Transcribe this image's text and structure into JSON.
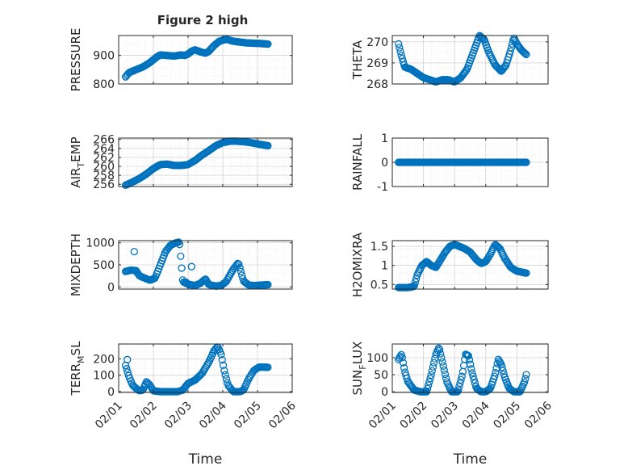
{
  "figure": {
    "title": "Figure 2 high",
    "colors": {
      "marker": "#0072BD",
      "axes": "#262626",
      "grid": "#c8c8c8"
    },
    "marker": "open-circle"
  },
  "chart_data": [
    {
      "type": "scatter",
      "ylabel": "PRESSURE",
      "title": "Figure 2 high",
      "ylim": [
        800,
        970
      ],
      "yticks": [
        800,
        900
      ],
      "yticklabels": [
        "800",
        "900"
      ],
      "xlim": [
        0,
        5
      ],
      "xticks": [
        0,
        1,
        2,
        3,
        4,
        5
      ],
      "xticklabels": [
        "02/01",
        "02/02",
        "02/03",
        "02/04",
        "02/05",
        "02/06"
      ],
      "show_xticklabels": false,
      "grid": true,
      "minor_grid": true,
      "profile": [
        [
          0.2,
          825
        ],
        [
          0.3,
          840
        ],
        [
          0.5,
          850
        ],
        [
          0.7,
          860
        ],
        [
          0.9,
          875
        ],
        [
          1.1,
          895
        ],
        [
          1.2,
          902
        ],
        [
          1.4,
          900
        ],
        [
          1.6,
          898
        ],
        [
          1.8,
          902
        ],
        [
          1.9,
          900
        ],
        [
          2.0,
          905
        ],
        [
          2.1,
          915
        ],
        [
          2.2,
          920
        ],
        [
          2.35,
          913
        ],
        [
          2.5,
          908
        ],
        [
          2.6,
          915
        ],
        [
          2.75,
          935
        ],
        [
          2.9,
          950
        ],
        [
          3.1,
          957
        ],
        [
          3.3,
          950
        ],
        [
          3.5,
          947
        ],
        [
          3.7,
          944
        ],
        [
          3.9,
          943
        ],
        [
          4.1,
          942
        ],
        [
          4.2,
          941
        ],
        [
          4.3,
          940
        ]
      ]
    },
    {
      "type": "scatter",
      "ylabel": "THETA",
      "ylim": [
        268,
        270.3
      ],
      "yticks": [
        268,
        269,
        270
      ],
      "yticklabels": [
        "268",
        "269",
        "270"
      ],
      "xlim": [
        0,
        5
      ],
      "xticks": [
        0,
        1,
        2,
        3,
        4,
        5
      ],
      "xticklabels": [
        "02/01",
        "02/02",
        "02/03",
        "02/04",
        "02/05",
        "02/06"
      ],
      "show_xticklabels": false,
      "grid": true,
      "minor_grid": true,
      "profile": [
        [
          0.2,
          269.9
        ],
        [
          0.3,
          269.3
        ],
        [
          0.4,
          268.8
        ],
        [
          0.6,
          268.7
        ],
        [
          0.8,
          268.5
        ],
        [
          1.0,
          268.3
        ],
        [
          1.2,
          268.2
        ],
        [
          1.4,
          268.1
        ],
        [
          1.6,
          268.2
        ],
        [
          1.8,
          268.2
        ],
        [
          2.0,
          268.1
        ],
        [
          2.2,
          268.3
        ],
        [
          2.4,
          268.7
        ],
        [
          2.55,
          269.3
        ],
        [
          2.7,
          269.9
        ],
        [
          2.8,
          270.3
        ],
        [
          2.95,
          270.1
        ],
        [
          3.1,
          269.5
        ],
        [
          3.3,
          268.9
        ],
        [
          3.5,
          268.6
        ],
        [
          3.65,
          268.9
        ],
        [
          3.8,
          269.6
        ],
        [
          3.9,
          270.2
        ],
        [
          4.0,
          269.9
        ],
        [
          4.15,
          269.6
        ],
        [
          4.3,
          269.4
        ]
      ]
    },
    {
      "type": "scatter",
      "ylabel": "AIR_TEMP",
      "ylim": [
        255.5,
        266.3
      ],
      "yticks": [
        256,
        258,
        260,
        262,
        264,
        266
      ],
      "yticklabels": [
        "256",
        "258",
        "260",
        "262",
        "264",
        "266"
      ],
      "xlim": [
        0,
        5
      ],
      "xticks": [
        0,
        1,
        2,
        3,
        4,
        5
      ],
      "xticklabels": [
        "02/01",
        "02/02",
        "02/03",
        "02/04",
        "02/05",
        "02/06"
      ],
      "show_xticklabels": false,
      "grid": true,
      "minor_grid": true,
      "profile": [
        [
          0.2,
          255.8
        ],
        [
          0.4,
          256.5
        ],
        [
          0.6,
          257.3
        ],
        [
          0.8,
          258.3
        ],
        [
          1.0,
          259.5
        ],
        [
          1.2,
          260.4
        ],
        [
          1.4,
          260.5
        ],
        [
          1.6,
          260.2
        ],
        [
          1.8,
          260.2
        ],
        [
          2.0,
          260.4
        ],
        [
          2.2,
          261.3
        ],
        [
          2.4,
          262.5
        ],
        [
          2.6,
          263.5
        ],
        [
          2.8,
          264.6
        ],
        [
          3.0,
          265.3
        ],
        [
          3.2,
          265.6
        ],
        [
          3.4,
          265.6
        ],
        [
          3.6,
          265.5
        ],
        [
          3.8,
          265.3
        ],
        [
          4.0,
          265.0
        ],
        [
          4.3,
          264.6
        ]
      ]
    },
    {
      "type": "scatter",
      "ylabel": "RAINFALL",
      "ylim": [
        -1,
        1
      ],
      "yticks": [
        -1,
        0,
        1
      ],
      "yticklabels": [
        "-1",
        "0",
        "1"
      ],
      "xlim": [
        0,
        5
      ],
      "xticks": [
        0,
        1,
        2,
        3,
        4,
        5
      ],
      "xticklabels": [
        "02/01",
        "02/02",
        "02/03",
        "02/04",
        "02/05",
        "02/06"
      ],
      "show_xticklabels": false,
      "grid": true,
      "minor_grid": true,
      "profile": [
        [
          0.2,
          0
        ],
        [
          4.3,
          0
        ]
      ]
    },
    {
      "type": "scatter",
      "ylabel": "MIXDEPTH",
      "ylim": [
        -50,
        1050
      ],
      "yticks": [
        0,
        500,
        1000
      ],
      "yticklabels": [
        "0",
        "500",
        "1000"
      ],
      "xlim": [
        0,
        5
      ],
      "xticks": [
        0,
        1,
        2,
        3,
        4,
        5
      ],
      "xticklabels": [
        "02/01",
        "02/02",
        "02/03",
        "02/04",
        "02/05",
        "02/06"
      ],
      "show_xticklabels": false,
      "grid": true,
      "minor_grid": true,
      "profile": [
        [
          0.2,
          350
        ],
        [
          0.35,
          380
        ],
        [
          0.5,
          370
        ],
        [
          0.6,
          250
        ],
        [
          0.75,
          200
        ],
        [
          0.9,
          150
        ],
        [
          1.05,
          200
        ],
        [
          1.2,
          500
        ],
        [
          1.35,
          800
        ],
        [
          1.5,
          950
        ],
        [
          1.65,
          1000
        ],
        [
          1.75,
          1020
        ],
        [
          1.85,
          120
        ],
        [
          2.0,
          60
        ],
        [
          2.2,
          30
        ],
        [
          2.35,
          80
        ],
        [
          2.5,
          180
        ],
        [
          2.6,
          50
        ],
        [
          2.8,
          20
        ],
        [
          2.95,
          30
        ],
        [
          3.1,
          120
        ],
        [
          3.3,
          400
        ],
        [
          3.45,
          550
        ],
        [
          3.6,
          130
        ],
        [
          3.75,
          40
        ],
        [
          3.9,
          30
        ],
        [
          4.1,
          40
        ],
        [
          4.3,
          50
        ]
      ],
      "outliers": [
        [
          0.45,
          800
        ],
        [
          2.1,
          460
        ],
        [
          1.95,
          100
        ]
      ]
    },
    {
      "type": "scatter",
      "ylabel": "H2OMIXRA",
      "ylim": [
        0.38,
        1.65
      ],
      "yticks": [
        0.5,
        1,
        1.5
      ],
      "yticklabels": [
        "0.5",
        "1",
        "1.5"
      ],
      "xlim": [
        0,
        5
      ],
      "xticks": [
        0,
        1,
        2,
        3,
        4,
        5
      ],
      "xticklabels": [
        "02/01",
        "02/02",
        "02/03",
        "02/04",
        "02/05",
        "02/06"
      ],
      "show_xticklabels": false,
      "grid": true,
      "minor_grid": true,
      "profile": [
        [
          0.2,
          0.42
        ],
        [
          0.5,
          0.42
        ],
        [
          0.7,
          0.45
        ],
        [
          0.8,
          0.75
        ],
        [
          0.95,
          1.0
        ],
        [
          1.1,
          1.1
        ],
        [
          1.25,
          1.0
        ],
        [
          1.4,
          0.95
        ],
        [
          1.55,
          1.15
        ],
        [
          1.7,
          1.35
        ],
        [
          1.85,
          1.5
        ],
        [
          2.0,
          1.55
        ],
        [
          2.15,
          1.5
        ],
        [
          2.3,
          1.45
        ],
        [
          2.5,
          1.35
        ],
        [
          2.7,
          1.15
        ],
        [
          2.85,
          1.05
        ],
        [
          3.0,
          1.1
        ],
        [
          3.15,
          1.3
        ],
        [
          3.3,
          1.55
        ],
        [
          3.45,
          1.45
        ],
        [
          3.6,
          1.2
        ],
        [
          3.8,
          0.95
        ],
        [
          4.0,
          0.85
        ],
        [
          4.3,
          0.8
        ]
      ]
    },
    {
      "type": "scatter",
      "ylabel": "TERR_MSL",
      "ylim": [
        -5,
        290
      ],
      "yticks": [
        0,
        100,
        200
      ],
      "yticklabels": [
        "0",
        "100",
        "200"
      ],
      "xlim": [
        0,
        5
      ],
      "xticks": [
        0,
        1,
        2,
        3,
        4,
        5
      ],
      "xticklabels": [
        "02/01",
        "02/02",
        "02/03",
        "02/04",
        "02/05",
        "02/06"
      ],
      "show_xticklabels": true,
      "xlabel": "Time",
      "grid": true,
      "minor_grid": true,
      "profile": [
        [
          0.2,
          160
        ],
        [
          0.3,
          90
        ],
        [
          0.4,
          40
        ],
        [
          0.5,
          20
        ],
        [
          0.6,
          5
        ],
        [
          0.7,
          10
        ],
        [
          0.8,
          60
        ],
        [
          0.9,
          40
        ],
        [
          1.0,
          5
        ],
        [
          1.2,
          0
        ],
        [
          1.5,
          0
        ],
        [
          1.7,
          0
        ],
        [
          1.85,
          10
        ],
        [
          2.0,
          50
        ],
        [
          2.2,
          70
        ],
        [
          2.4,
          110
        ],
        [
          2.6,
          180
        ],
        [
          2.75,
          250
        ],
        [
          2.85,
          275
        ],
        [
          2.95,
          230
        ],
        [
          3.05,
          120
        ],
        [
          3.15,
          40
        ],
        [
          3.3,
          0
        ],
        [
          3.5,
          0
        ],
        [
          3.6,
          10
        ],
        [
          3.75,
          80
        ],
        [
          3.9,
          130
        ],
        [
          4.05,
          150
        ],
        [
          4.3,
          148
        ]
      ],
      "outliers": [
        [
          0.25,
          195
        ]
      ]
    },
    {
      "type": "scatter",
      "ylabel": "SUN_FLUX",
      "ylim": [
        -2,
        140
      ],
      "yticks": [
        0,
        50,
        100
      ],
      "yticklabels": [
        "0",
        "50",
        "100"
      ],
      "xlim": [
        0,
        5
      ],
      "xticks": [
        0,
        1,
        2,
        3,
        4,
        5
      ],
      "xticklabels": [
        "02/01",
        "02/02",
        "02/03",
        "02/04",
        "02/05",
        "02/06"
      ],
      "show_xticklabels": true,
      "xlabel": "Time",
      "grid": true,
      "minor_grid": true,
      "profile": [
        [
          0.2,
          95
        ],
        [
          0.3,
          110
        ],
        [
          0.4,
          60
        ],
        [
          0.5,
          30
        ],
        [
          0.7,
          5
        ],
        [
          0.9,
          0
        ],
        [
          1.1,
          0
        ],
        [
          1.25,
          50
        ],
        [
          1.4,
          110
        ],
        [
          1.5,
          130
        ],
        [
          1.6,
          90
        ],
        [
          1.75,
          30
        ],
        [
          1.9,
          0
        ],
        [
          2.1,
          0
        ],
        [
          2.25,
          50
        ],
        [
          2.35,
          110
        ],
        [
          2.45,
          105
        ],
        [
          2.55,
          60
        ],
        [
          2.7,
          10
        ],
        [
          2.85,
          0
        ],
        [
          3.0,
          0
        ],
        [
          3.15,
          10
        ],
        [
          3.3,
          50
        ],
        [
          3.4,
          95
        ],
        [
          3.5,
          80
        ],
        [
          3.6,
          45
        ],
        [
          3.75,
          10
        ],
        [
          3.9,
          0
        ],
        [
          4.1,
          0
        ],
        [
          4.25,
          30
        ],
        [
          4.3,
          50
        ]
      ]
    }
  ]
}
